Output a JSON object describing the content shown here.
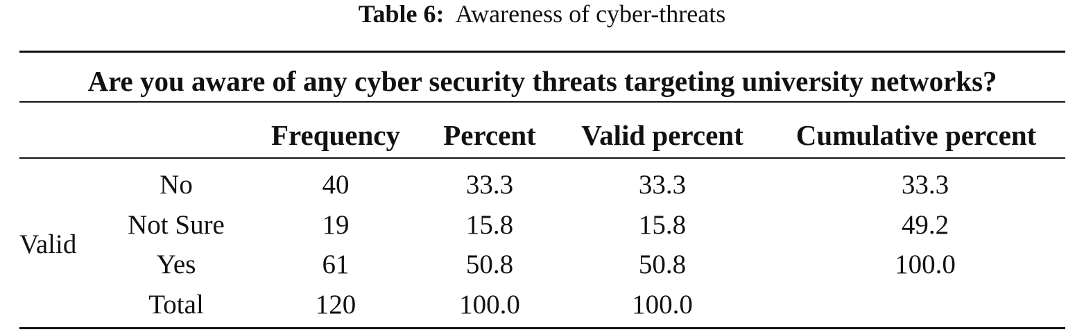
{
  "caption": {
    "label": "Table 6:",
    "text": "Awareness of cyber-threats"
  },
  "table": {
    "question": "Are you aware of any cyber security threats targeting university networks?",
    "headers": [
      "Frequency",
      "Percent",
      "Valid percent",
      "Cumulative percent"
    ],
    "group_label": "Valid",
    "rows": [
      {
        "category": "No",
        "frequency": "40",
        "percent": "33.3",
        "valid_percent": "33.3",
        "cumulative_percent": "33.3"
      },
      {
        "category": "Not Sure",
        "frequency": "19",
        "percent": "15.8",
        "valid_percent": "15.8",
        "cumulative_percent": "49.2"
      },
      {
        "category": "Yes",
        "frequency": "61",
        "percent": "50.8",
        "valid_percent": "50.8",
        "cumulative_percent": "100.0"
      },
      {
        "category": "Total",
        "frequency": "120",
        "percent": "100.0",
        "valid_percent": "100.0",
        "cumulative_percent": ""
      }
    ]
  }
}
